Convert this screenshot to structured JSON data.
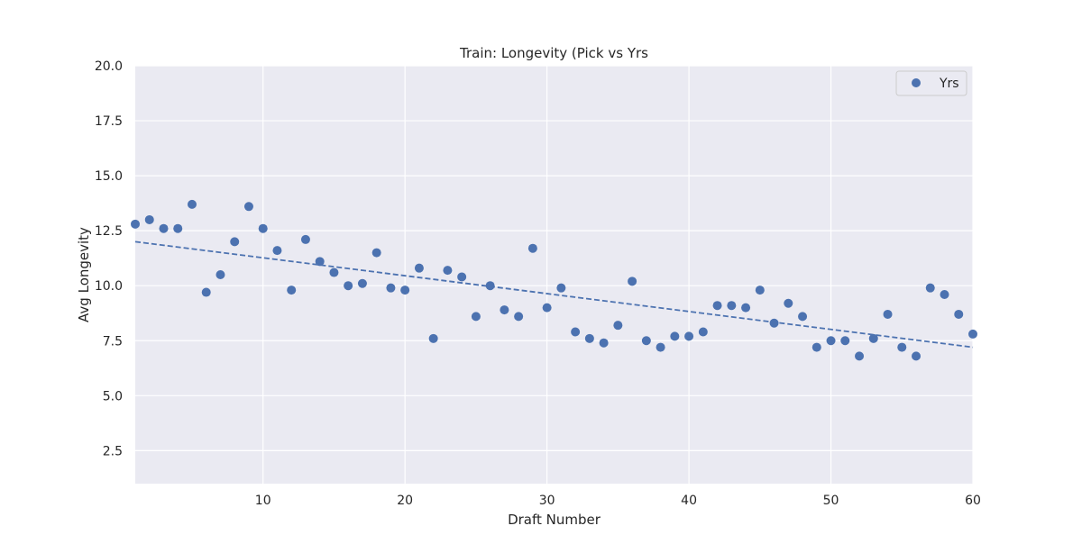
{
  "chart_data": {
    "type": "scatter",
    "title": "Train: Longevity (Pick vs Yrs",
    "xlabel": "Draft Number",
    "ylabel": "Avg Longevity",
    "xlim": [
      1,
      60
    ],
    "ylim": [
      1.0,
      20.0
    ],
    "xticks": [
      10,
      20,
      30,
      40,
      50,
      60
    ],
    "yticks": [
      2.5,
      5.0,
      7.5,
      10.0,
      12.5,
      15.0,
      17.5,
      20.0
    ],
    "grid": true,
    "legend_position": "top-right",
    "colors": {
      "points": "#4c72b0",
      "trend": "#4c72b0",
      "background": "#eaeaf2",
      "grid": "#ffffff"
    },
    "series": [
      {
        "name": "Yrs",
        "x": [
          1,
          2,
          3,
          4,
          5,
          6,
          7,
          8,
          9,
          10,
          11,
          12,
          13,
          14,
          15,
          16,
          17,
          18,
          19,
          20,
          21,
          22,
          23,
          24,
          25,
          26,
          27,
          28,
          29,
          30,
          31,
          32,
          33,
          34,
          35,
          36,
          37,
          38,
          39,
          40,
          41,
          42,
          43,
          44,
          45,
          46,
          47,
          48,
          49,
          50,
          51,
          52,
          53,
          54,
          55,
          56,
          57,
          58,
          59,
          60
        ],
        "values": [
          12.8,
          13.0,
          12.6,
          12.6,
          13.7,
          9.7,
          10.5,
          12.0,
          13.6,
          12.6,
          11.6,
          9.8,
          12.1,
          11.1,
          10.6,
          10.0,
          10.1,
          11.5,
          9.9,
          9.8,
          10.8,
          7.6,
          10.7,
          10.4,
          8.6,
          10.0,
          8.9,
          8.6,
          11.7,
          9.0,
          9.9,
          7.9,
          7.6,
          7.4,
          8.2,
          10.2,
          7.5,
          7.2,
          7.7,
          7.7,
          7.9,
          9.1,
          9.1,
          9.0,
          9.8,
          8.3,
          9.2,
          8.6,
          7.2,
          7.5,
          7.5,
          6.8,
          7.6,
          8.7,
          7.2,
          6.8,
          9.9,
          9.6,
          8.7,
          7.8
        ]
      }
    ],
    "trendline": {
      "x": [
        1,
        60
      ],
      "values": [
        12.0,
        7.2
      ]
    }
  }
}
